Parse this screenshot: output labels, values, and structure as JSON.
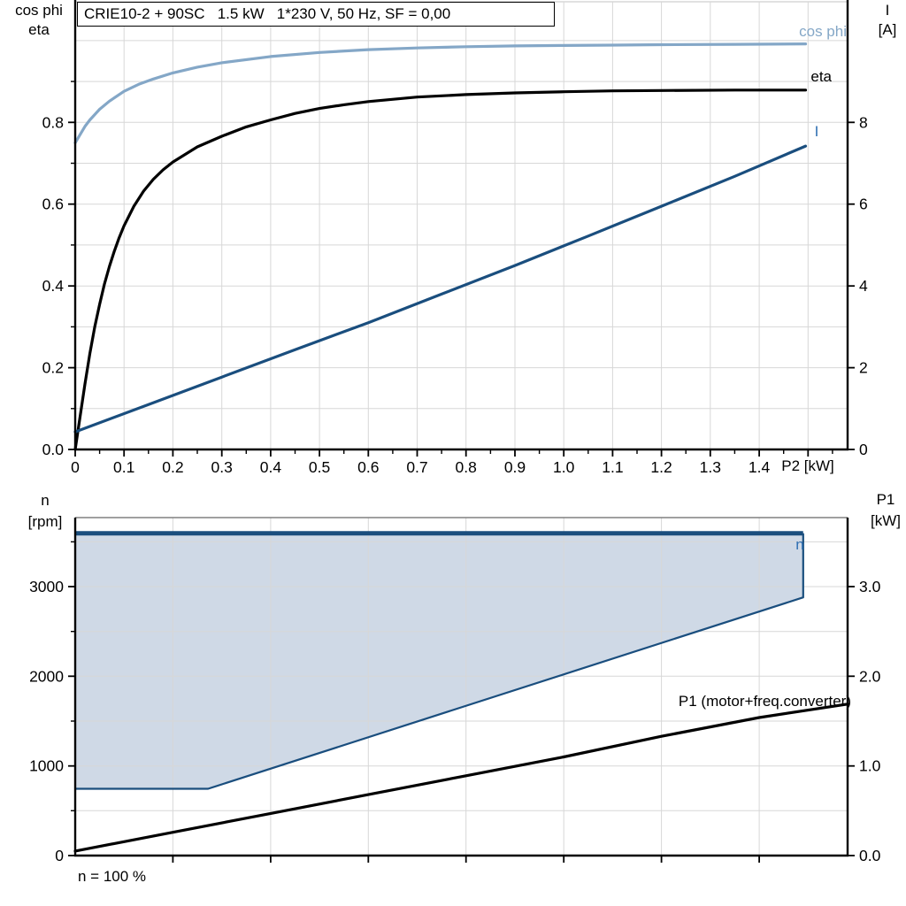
{
  "title_box": {
    "text": "CRIE10-2 + 90SC   1.5 kW   1*230 V, 50 Hz, SF = 0,00"
  },
  "colors": {
    "cos_phi": "#84a7c7",
    "eta": "#000000",
    "current": "#1a4e7e",
    "label_blue": "#2f6fb2",
    "region_fill": "#cfd9e6",
    "region_border": "#1a4e7e",
    "grid": "#d7d7d7",
    "axis": "#000000",
    "panel_border": "#808080",
    "p1_line": "#000000"
  },
  "top_chart": {
    "y_left_title_line1": "cos phi",
    "y_left_title_line2": "eta",
    "y_right_title_line1": "I",
    "y_right_title_line2": "[A]",
    "x_axis_unit_label": "P2 [kW]",
    "curve_labels": {
      "cos_phi": "cos phi",
      "eta": "eta",
      "current": "I"
    }
  },
  "bottom_chart": {
    "y_left_title_line1": "n",
    "y_left_title_line2": "[rpm]",
    "y_right_title_line1": "P1",
    "y_right_title_line2": "[kW]",
    "curve_labels": {
      "speed_region": "n",
      "p1": "P1 (motor+freq.converter)"
    },
    "footnote": "n = 100 %"
  },
  "chart_data": [
    {
      "panel": "top",
      "type": "line",
      "title": "CRIE10-2 + 90SC   1.5 kW   1*230 V, 50 Hz, SF = 0,00",
      "xlabel": "P2 [kW]",
      "x_range": [
        0,
        1.581
      ],
      "x_grid_step": 0.1,
      "x_major_ticks": [
        0,
        0.1,
        0.2,
        0.3,
        0.4,
        0.5,
        0.6,
        0.7,
        0.8,
        0.9,
        1.0,
        1.1,
        1.2,
        1.3,
        1.4,
        1.5
      ],
      "x_tick_labels": [
        "0",
        "0.1",
        "0.2",
        "0.3",
        "0.4",
        "0.5",
        "0.6",
        "0.7",
        "0.8",
        "0.9",
        "1.0",
        "1.1",
        "1.2",
        "1.3",
        "1.4"
      ],
      "x_minor_step": 0.05,
      "grid": true,
      "y_left": {
        "labels": [
          "cos phi",
          "eta"
        ],
        "range": [
          0,
          1.095
        ],
        "major_ticks": [
          0,
          0.2,
          0.4,
          0.6,
          0.8
        ],
        "tick_labels": [
          "0.0",
          "0.2",
          "0.4",
          "0.6",
          "0.8"
        ],
        "minor_step": 0.1,
        "grid_step": 0.1,
        "grid_max": 1.0
      },
      "y_right": {
        "labels": [
          "I",
          "[A]"
        ],
        "range": [
          0,
          10.95
        ],
        "major_ticks": [
          0,
          2,
          4,
          6,
          8
        ],
        "tick_labels": [
          "0",
          "2",
          "4",
          "6",
          "8"
        ],
        "minor_step": 1
      },
      "series": [
        {
          "name": "cos phi",
          "axis": "left",
          "color": "#84a7c7",
          "width": 3.2,
          "points": [
            [
              0,
              0.75
            ],
            [
              0.01,
              0.77
            ],
            [
              0.02,
              0.79
            ],
            [
              0.03,
              0.806
            ],
            [
              0.05,
              0.832
            ],
            [
              0.07,
              0.852
            ],
            [
              0.1,
              0.876
            ],
            [
              0.13,
              0.893
            ],
            [
              0.16,
              0.906
            ],
            [
              0.2,
              0.921
            ],
            [
              0.25,
              0.935
            ],
            [
              0.3,
              0.946
            ],
            [
              0.4,
              0.961
            ],
            [
              0.5,
              0.971
            ],
            [
              0.6,
              0.978
            ],
            [
              0.7,
              0.982
            ],
            [
              0.8,
              0.985
            ],
            [
              0.9,
              0.987
            ],
            [
              1.0,
              0.988
            ],
            [
              1.1,
              0.989
            ],
            [
              1.2,
              0.99
            ],
            [
              1.35,
              0.991
            ],
            [
              1.495,
              0.992
            ]
          ]
        },
        {
          "name": "eta",
          "axis": "left",
          "color": "#000000",
          "width": 3.2,
          "points": [
            [
              0,
              0.0
            ],
            [
              0.01,
              0.08
            ],
            [
              0.02,
              0.16
            ],
            [
              0.03,
              0.235
            ],
            [
              0.04,
              0.3
            ],
            [
              0.05,
              0.355
            ],
            [
              0.06,
              0.405
            ],
            [
              0.07,
              0.448
            ],
            [
              0.08,
              0.485
            ],
            [
              0.09,
              0.518
            ],
            [
              0.1,
              0.547
            ],
            [
              0.12,
              0.595
            ],
            [
              0.14,
              0.632
            ],
            [
              0.16,
              0.661
            ],
            [
              0.18,
              0.684
            ],
            [
              0.2,
              0.703
            ],
            [
              0.25,
              0.74
            ],
            [
              0.3,
              0.766
            ],
            [
              0.35,
              0.789
            ],
            [
              0.4,
              0.806
            ],
            [
              0.45,
              0.822
            ],
            [
              0.5,
              0.834
            ],
            [
              0.55,
              0.843
            ],
            [
              0.6,
              0.851
            ],
            [
              0.7,
              0.862
            ],
            [
              0.8,
              0.868
            ],
            [
              0.9,
              0.872
            ],
            [
              1.0,
              0.875
            ],
            [
              1.1,
              0.877
            ],
            [
              1.2,
              0.878
            ],
            [
              1.35,
              0.879
            ],
            [
              1.495,
              0.879
            ]
          ]
        },
        {
          "name": "I",
          "axis": "right",
          "color": "#1a4e7e",
          "width": 3.2,
          "points": [
            [
              0,
              0.43
            ],
            [
              0.15,
              1.1
            ],
            [
              0.3,
              1.77
            ],
            [
              0.45,
              2.44
            ],
            [
              0.6,
              3.1
            ],
            [
              0.75,
              3.8
            ],
            [
              0.9,
              4.5
            ],
            [
              1.05,
              5.22
            ],
            [
              1.2,
              5.95
            ],
            [
              1.35,
              6.68
            ],
            [
              1.495,
              7.42
            ]
          ]
        }
      ]
    },
    {
      "panel": "bottom",
      "type": "area+line",
      "title": "",
      "xlabel": "",
      "x_range": [
        0,
        1.581
      ],
      "x_grid_step": 0.2,
      "x_major_ticks": [
        0.2,
        0.4,
        0.6,
        0.8,
        1.0,
        1.2,
        1.4
      ],
      "x_tick_labels": [],
      "grid": true,
      "y_left": {
        "labels": [
          "n",
          "[rpm]"
        ],
        "range": [
          0,
          3770
        ],
        "major_ticks": [
          0,
          1000,
          2000,
          3000
        ],
        "tick_labels": [
          "0",
          "1000",
          "2000",
          "3000"
        ],
        "minor_step": 500,
        "grid_step": 500,
        "grid_max": 3500
      },
      "y_right": {
        "labels": [
          "P1",
          "[kW]"
        ],
        "range": [
          0,
          3.77
        ],
        "major_ticks": [
          0,
          1,
          2,
          3
        ],
        "tick_labels": [
          "0.0",
          "1.0",
          "2.0",
          "3.0"
        ],
        "minor_step": 0.5
      },
      "series": [
        {
          "name": "n",
          "type": "region",
          "axis": "left",
          "fill": "#cfd9e6",
          "border": "#1a4e7e",
          "border_width": 2.2,
          "top_edge_width": 5,
          "points": [
            [
              0,
              3595
            ],
            [
              1.49,
              3595
            ],
            [
              1.49,
              2880
            ],
            [
              0.272,
              745
            ],
            [
              0,
              745
            ]
          ]
        },
        {
          "name": "P1 (motor+freq.converter)",
          "type": "line",
          "axis": "right",
          "color": "#000000",
          "width": 3.2,
          "points": [
            [
              0,
              0.05
            ],
            [
              0.2,
              0.26
            ],
            [
              0.4,
              0.47
            ],
            [
              0.6,
              0.68
            ],
            [
              0.8,
              0.89
            ],
            [
              1.0,
              1.1
            ],
            [
              1.2,
              1.33
            ],
            [
              1.4,
              1.54
            ],
            [
              1.581,
              1.69
            ]
          ]
        }
      ],
      "annotations": [
        "n = 100 %",
        "n = 100 % line at top of shaded speed-range region"
      ]
    }
  ]
}
